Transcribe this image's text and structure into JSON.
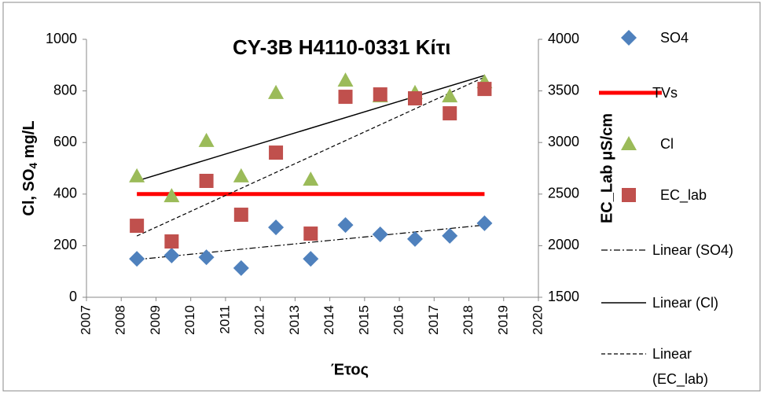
{
  "chart_data": {
    "type": "scatter",
    "title": "CY-3B H4110-0331 Κίτι",
    "xlabel": "Έτος",
    "ylabel": {
      "text": "Cl, SO",
      "sub": "4",
      "rest": " mg/L"
    },
    "y2label": "EC_Lab μS/cm",
    "xlim": [
      2007,
      2020
    ],
    "xticks": [
      2007,
      2008,
      2009,
      2010,
      2011,
      2012,
      2013,
      2014,
      2015,
      2016,
      2017,
      2018,
      2019,
      2020
    ],
    "ylim": [
      0,
      1000
    ],
    "yticks": [
      0,
      200,
      400,
      600,
      800,
      1000
    ],
    "y2lim": [
      1500,
      4000
    ],
    "y2ticks": [
      1500,
      2000,
      2500,
      3000,
      3500,
      4000
    ],
    "series": [
      {
        "name": "SO4",
        "kind": "scatter",
        "marker": "diamond",
        "color": "#4f81bd",
        "x": [
          2008.45,
          2009.45,
          2010.45,
          2011.45,
          2012.45,
          2013.45,
          2014.45,
          2015.45,
          2016.45,
          2017.45,
          2018.45
        ],
        "values": [
          149,
          162,
          155,
          113,
          271,
          149,
          280,
          244,
          226,
          238,
          287
        ]
      },
      {
        "name": "TVs",
        "kind": "line",
        "color": "#ff0000",
        "width": 5,
        "x": [
          2008.45,
          2018.45
        ],
        "values": [
          400,
          400
        ]
      },
      {
        "name": "Cl",
        "kind": "scatter",
        "marker": "triangle",
        "color": "#9bbb59",
        "x": [
          2008.45,
          2009.45,
          2010.45,
          2011.45,
          2012.45,
          2013.45,
          2014.45,
          2015.45,
          2016.45,
          2017.45,
          2018.45
        ],
        "values": [
          470,
          393,
          607,
          470,
          793,
          457,
          841,
          780,
          793,
          780,
          835
        ]
      },
      {
        "name": "EC_lab",
        "kind": "scatter",
        "marker": "square",
        "color": "#c0504d",
        "axis": "y2",
        "x": [
          2008.45,
          2009.45,
          2010.45,
          2011.45,
          2012.45,
          2013.45,
          2014.45,
          2015.45,
          2016.45,
          2017.45,
          2018.45
        ],
        "values": [
          2193,
          2041,
          2628,
          2300,
          2902,
          2117,
          3443,
          3466,
          3428,
          3283,
          3519
        ]
      },
      {
        "name": "Linear (SO4)",
        "kind": "line",
        "color": "#000000",
        "width": 1.2,
        "dash": "8 3 2 3",
        "x": [
          2008.45,
          2018.45
        ],
        "values": [
          146,
          280
        ]
      },
      {
        "name": "Linear (Cl)",
        "kind": "line",
        "color": "#000000",
        "width": 1.5,
        "x": [
          2008.45,
          2018.45
        ],
        "values": [
          451,
          860
        ]
      },
      {
        "name": "Linear (EC_lab)",
        "kind": "line",
        "color": "#000000",
        "width": 1.2,
        "dash": "5 3",
        "axis": "y2",
        "x": [
          2008.45,
          2018.45
        ],
        "values": [
          2094,
          3634
        ]
      }
    ]
  }
}
